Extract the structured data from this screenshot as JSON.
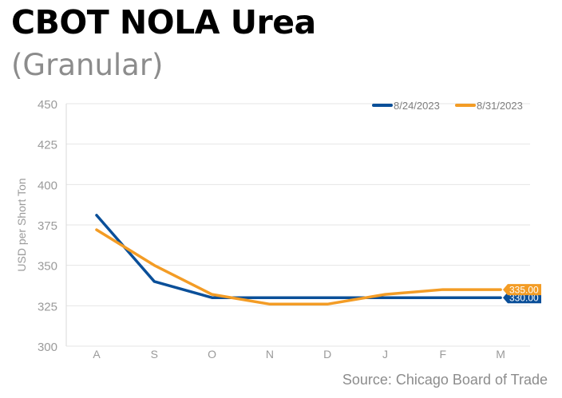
{
  "header": {
    "title": "CBOT NOLA Urea",
    "subtitle": "(Granular)",
    "source": "Source: Chicago Board of Trade"
  },
  "colors": {
    "series_1": "#0a4f99",
    "series_2": "#f39c25",
    "grid": "#e6e6e6",
    "axis_text": "#9a9a9a"
  },
  "chart_data": {
    "type": "line",
    "title": "CBOT NOLA Urea",
    "subtitle": "(Granular)",
    "xlabel": "",
    "ylabel": "USD per Short Ton",
    "categories": [
      "A",
      "S",
      "O",
      "N",
      "D",
      "J",
      "F",
      "M"
    ],
    "ylim": [
      300,
      450
    ],
    "yticks": [
      300,
      325,
      350,
      375,
      400,
      425,
      450
    ],
    "grid": "horizontal",
    "legend": "top-right",
    "series": [
      {
        "name": "8/24/2023",
        "values": [
          381,
          340,
          330,
          330,
          330,
          330,
          330,
          330
        ],
        "end_label": "330.00"
      },
      {
        "name": "8/31/2023",
        "values": [
          372,
          350,
          332,
          326,
          326,
          332,
          335,
          335
        ],
        "end_label": "335.00"
      }
    ]
  }
}
